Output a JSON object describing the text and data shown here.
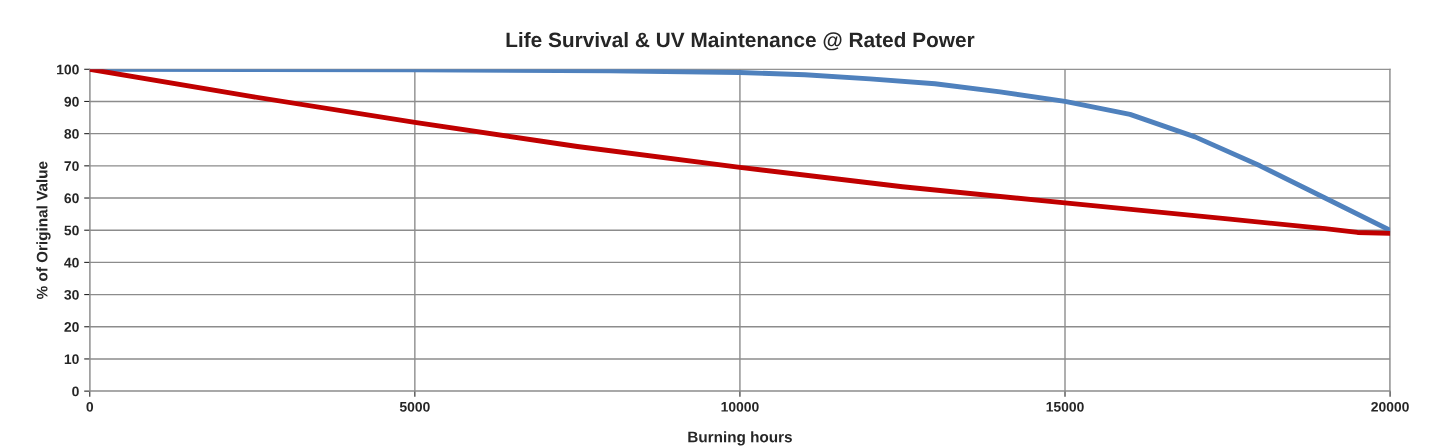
{
  "chart_data": {
    "type": "line",
    "title": "Life Survival & UV Maintenance @ Rated Power",
    "xlabel": "Burning hours",
    "ylabel": "% of Original Value",
    "series": [
      {
        "color": "#4f81bd",
        "x": [
          0,
          5000,
          8000,
          10000,
          11000,
          12000,
          13000,
          14000,
          15000,
          16000,
          17000,
          18000,
          19000,
          20000
        ],
        "values": [
          100,
          99.8,
          99.5,
          99,
          98.3,
          97,
          95.5,
          93,
          90,
          86,
          79,
          70,
          60,
          50
        ]
      },
      {
        "color": "#c00000",
        "x": [
          0,
          2500,
          5000,
          7500,
          10000,
          12500,
          15000,
          17500,
          19000,
          19500,
          20000
        ],
        "values": [
          100,
          91.5,
          83.5,
          76,
          69.5,
          63.5,
          58.5,
          53.5,
          50.5,
          49.3,
          49
        ]
      }
    ],
    "xlim": [
      0,
      20000
    ],
    "xticks": [
      0,
      5000,
      10000,
      15000,
      20000
    ],
    "ylim": [
      0,
      100
    ],
    "yticks": [
      0,
      10,
      20,
      30,
      40,
      50,
      60,
      70,
      80,
      90,
      100
    ],
    "grid": true,
    "legend": false,
    "marker": "none",
    "line_style": "solid"
  }
}
